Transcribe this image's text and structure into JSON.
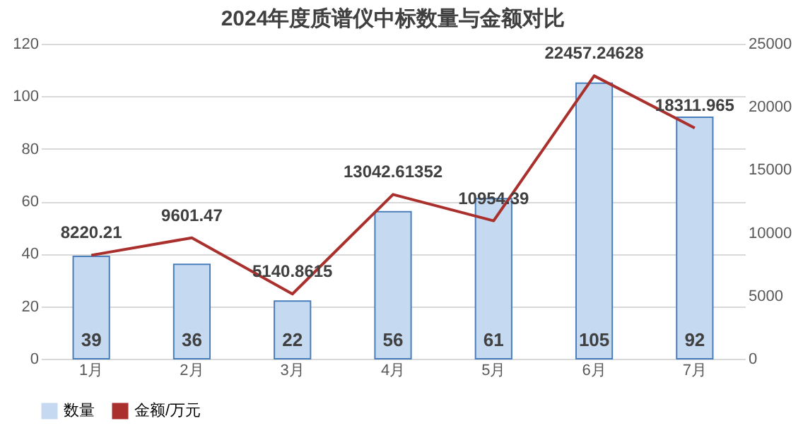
{
  "chart_data": {
    "type": "bar",
    "title": "2024年度质谱仪中标数量与金额对比",
    "categories": [
      "1月",
      "2月",
      "3月",
      "4月",
      "5月",
      "6月",
      "7月"
    ],
    "series": [
      {
        "name": "数量",
        "color": "#c5d9f1",
        "values": [
          39,
          36,
          22,
          56,
          61,
          105,
          92
        ]
      },
      {
        "name": "金额/万元",
        "type": "line",
        "axis": "y2",
        "color": "#a9302d",
        "values": [
          8220.21,
          9601.47,
          5140.8615,
          13042.61352,
          10954.39,
          22457.24628,
          18311.965
        ]
      }
    ],
    "ylim": [
      0,
      120
    ],
    "yticks": [
      0,
      20,
      40,
      60,
      80,
      100,
      120
    ],
    "y2lim": [
      0,
      25000
    ],
    "y2ticks": [
      0,
      5000,
      10000,
      15000,
      20000,
      25000
    ],
    "grid": "y",
    "legend": "bottom",
    "data_labels": true,
    "marker": "none"
  }
}
